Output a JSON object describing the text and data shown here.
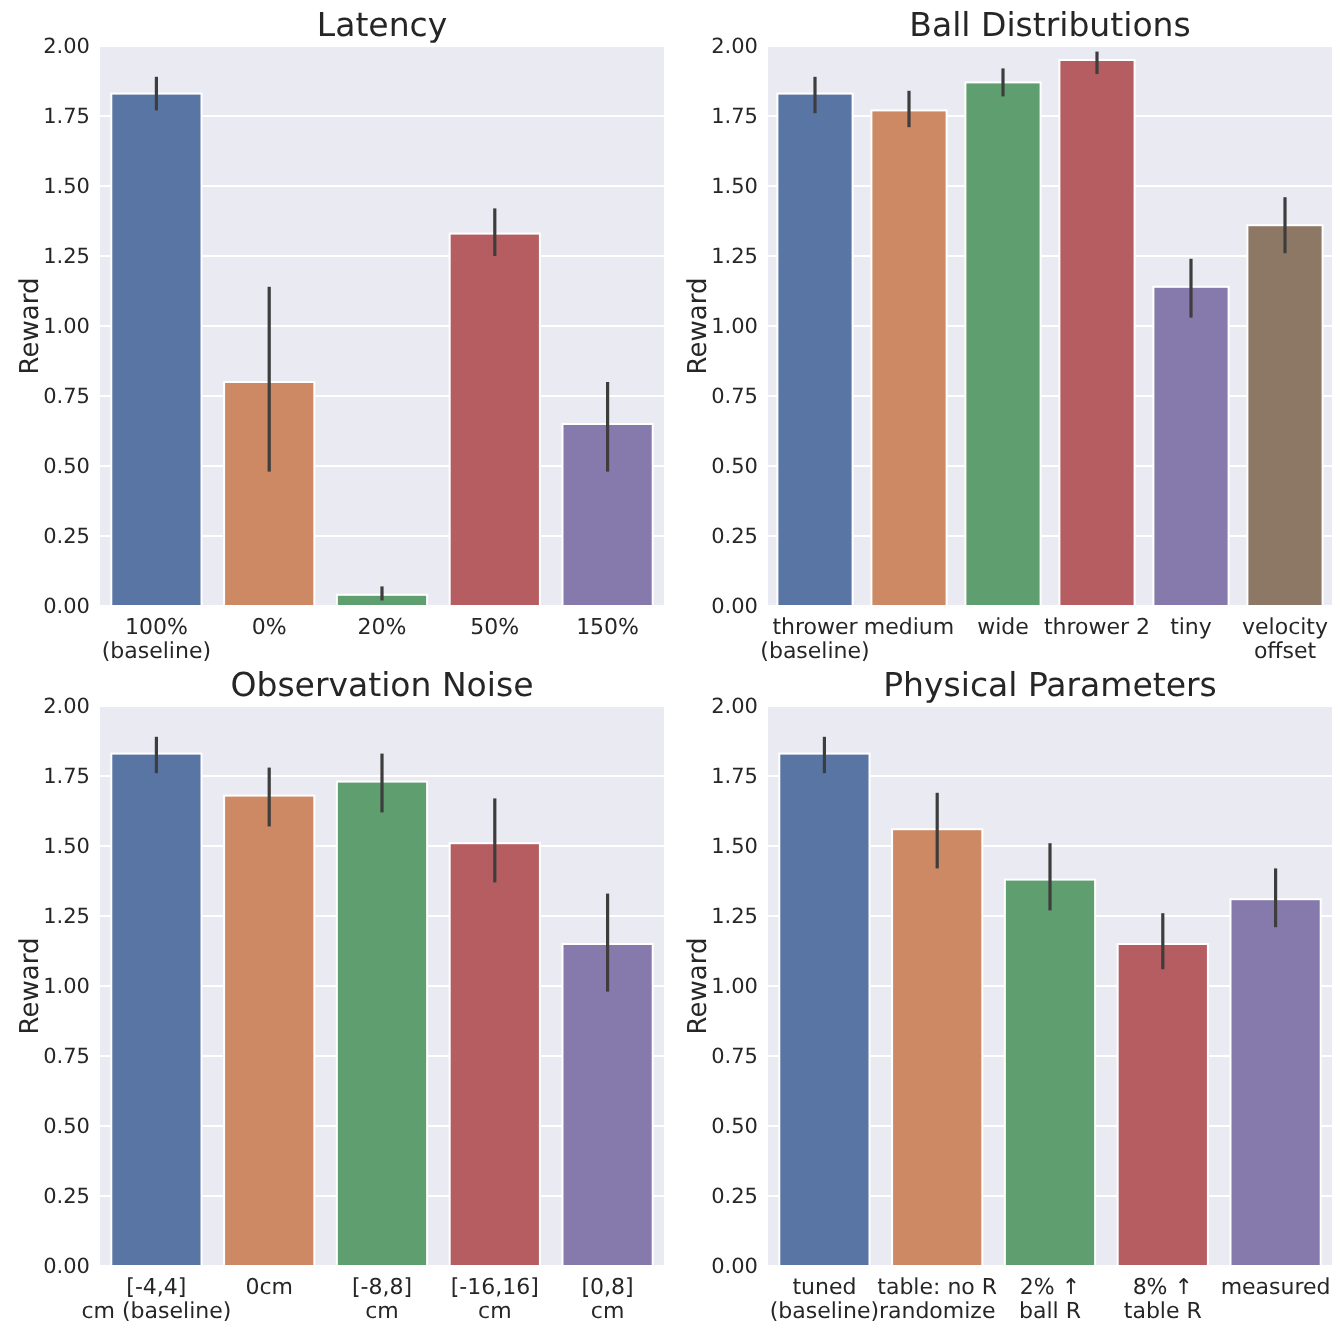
{
  "chart_data": [
    {
      "type": "bar",
      "title": "Latency",
      "ylabel": "Reward",
      "categories": [
        "100%\n(baseline)",
        "0%",
        "20%",
        "50%",
        "150%"
      ],
      "values": [
        1.83,
        0.8,
        0.04,
        1.33,
        0.65
      ],
      "colors": [
        "#5975a4",
        "#cc8963",
        "#5f9e6e",
        "#b55d60",
        "#857aab"
      ],
      "errors": [
        [
          1.77,
          1.89
        ],
        [
          0.48,
          1.14
        ],
        [
          0.02,
          0.07
        ],
        [
          1.25,
          1.42
        ],
        [
          0.48,
          0.8
        ]
      ],
      "ylim": [
        0,
        2
      ],
      "yticks": [
        {
          "value": 0,
          "label": "0.00"
        },
        {
          "value": 0.25,
          "label": "0.25"
        },
        {
          "value": 0.5,
          "label": "0.50"
        },
        {
          "value": 0.75,
          "label": "0.75"
        },
        {
          "value": 1,
          "label": "1.00"
        },
        {
          "value": 1.25,
          "label": "1.25"
        },
        {
          "value": 1.5,
          "label": "1.50"
        },
        {
          "value": 1.75,
          "label": "1.75"
        },
        {
          "value": 2,
          "label": "2.00"
        }
      ],
      "grid": "y"
    },
    {
      "type": "bar",
      "title": "Ball Distributions",
      "ylabel": "Reward",
      "categories": [
        "thrower\n(baseline)",
        "medium",
        "wide",
        "thrower 2",
        "tiny",
        "velocity\noffset"
      ],
      "values": [
        1.83,
        1.77,
        1.87,
        1.95,
        1.14,
        1.36
      ],
      "colors": [
        "#5975a4",
        "#cc8963",
        "#5f9e6e",
        "#b55d60",
        "#857aab",
        "#8d7866"
      ],
      "errors": [
        [
          1.76,
          1.89
        ],
        [
          1.71,
          1.84
        ],
        [
          1.82,
          1.92
        ],
        [
          1.9,
          1.98
        ],
        [
          1.03,
          1.24
        ],
        [
          1.26,
          1.46
        ]
      ],
      "ylim": [
        0,
        2
      ],
      "yticks": [
        {
          "value": 0,
          "label": "0.00"
        },
        {
          "value": 0.25,
          "label": "0.25"
        },
        {
          "value": 0.5,
          "label": "0.50"
        },
        {
          "value": 0.75,
          "label": "0.75"
        },
        {
          "value": 1,
          "label": "1.00"
        },
        {
          "value": 1.25,
          "label": "1.25"
        },
        {
          "value": 1.5,
          "label": "1.50"
        },
        {
          "value": 1.75,
          "label": "1.75"
        },
        {
          "value": 2,
          "label": "2.00"
        }
      ],
      "grid": "y"
    },
    {
      "type": "bar",
      "title": "Observation Noise",
      "ylabel": "Reward",
      "categories": [
        "[-4,4]\ncm (baseline)",
        "0cm",
        "[-8,8]\ncm",
        "[-16,16]\ncm",
        "[0,8]\ncm"
      ],
      "values": [
        1.83,
        1.68,
        1.73,
        1.51,
        1.15
      ],
      "colors": [
        "#5975a4",
        "#cc8963",
        "#5f9e6e",
        "#b55d60",
        "#857aab"
      ],
      "errors": [
        [
          1.76,
          1.89
        ],
        [
          1.57,
          1.78
        ],
        [
          1.62,
          1.83
        ],
        [
          1.37,
          1.67
        ],
        [
          0.98,
          1.33
        ]
      ],
      "ylim": [
        0,
        2
      ],
      "yticks": [
        {
          "value": 0,
          "label": "0.00"
        },
        {
          "value": 0.25,
          "label": "0.25"
        },
        {
          "value": 0.5,
          "label": "0.50"
        },
        {
          "value": 0.75,
          "label": "0.75"
        },
        {
          "value": 1,
          "label": "1.00"
        },
        {
          "value": 1.25,
          "label": "1.25"
        },
        {
          "value": 1.5,
          "label": "1.50"
        },
        {
          "value": 1.75,
          "label": "1.75"
        },
        {
          "value": 2,
          "label": "2.00"
        }
      ],
      "grid": "y"
    },
    {
      "type": "bar",
      "title": "Physical Parameters",
      "ylabel": "Reward",
      "categories": [
        "tuned\n(baseline)",
        "table: no R\nrandomize",
        "2% ↑\nball R",
        "8% ↑\ntable R",
        "measured"
      ],
      "values": [
        1.83,
        1.56,
        1.38,
        1.15,
        1.31
      ],
      "colors": [
        "#5975a4",
        "#cc8963",
        "#5f9e6e",
        "#b55d60",
        "#857aab"
      ],
      "errors": [
        [
          1.76,
          1.89
        ],
        [
          1.42,
          1.69
        ],
        [
          1.27,
          1.51
        ],
        [
          1.06,
          1.26
        ],
        [
          1.21,
          1.42
        ]
      ],
      "ylim": [
        0,
        2
      ],
      "yticks": [
        {
          "value": 0,
          "label": "0.00"
        },
        {
          "value": 0.25,
          "label": "0.25"
        },
        {
          "value": 0.5,
          "label": "0.50"
        },
        {
          "value": 0.75,
          "label": "0.75"
        },
        {
          "value": 1,
          "label": "1.00"
        },
        {
          "value": 1.25,
          "label": "1.25"
        },
        {
          "value": 1.5,
          "label": "1.50"
        },
        {
          "value": 1.75,
          "label": "1.75"
        },
        {
          "value": 2,
          "label": "2.00"
        }
      ],
      "grid": "y"
    }
  ]
}
